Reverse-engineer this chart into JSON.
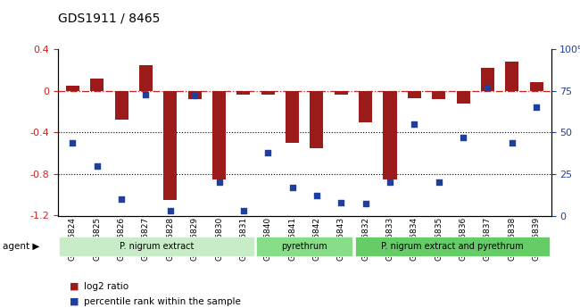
{
  "title": "GDS1911 / 8465",
  "samples": [
    "GSM66824",
    "GSM66825",
    "GSM66826",
    "GSM66827",
    "GSM66828",
    "GSM66829",
    "GSM66830",
    "GSM66831",
    "GSM66840",
    "GSM66841",
    "GSM66842",
    "GSM66843",
    "GSM66832",
    "GSM66833",
    "GSM66834",
    "GSM66835",
    "GSM66836",
    "GSM66837",
    "GSM66838",
    "GSM66839"
  ],
  "log2_ratio": [
    0.05,
    0.12,
    -0.28,
    0.25,
    -1.05,
    -0.08,
    -0.85,
    -0.04,
    -0.04,
    -0.5,
    -0.55,
    -0.04,
    -0.3,
    -0.85,
    -0.07,
    -0.08,
    -0.12,
    0.22,
    0.28,
    0.08
  ],
  "pct_rank": [
    44,
    30,
    10,
    73,
    3,
    72,
    20,
    3,
    38,
    17,
    12,
    8,
    7,
    20,
    55,
    20,
    47,
    77,
    44,
    65
  ],
  "ylim_left": [
    -1.2,
    0.4
  ],
  "ylim_right": [
    0,
    100
  ],
  "bar_color": "#9B1B1B",
  "dot_color": "#1F3F9F",
  "dashed_line_color": "#CC2222",
  "grid_color": "#000000",
  "bg_color": "#FFFFFF",
  "groups": [
    {
      "label": "P. nigrum extract",
      "start": 0,
      "end": 8,
      "color": "#AADDAA"
    },
    {
      "label": "pyrethrum",
      "start": 8,
      "end": 12,
      "color": "#77DD77"
    },
    {
      "label": "P. nigrum extract and pyrethrum",
      "start": 12,
      "end": 20,
      "color": "#55CC55"
    }
  ],
  "ylabel_left": "",
  "ylabel_right": "",
  "legend_items": [
    {
      "label": "log2 ratio",
      "color": "#9B1B1B"
    },
    {
      "label": "percentile rank within the sample",
      "color": "#1F3F9F"
    }
  ]
}
